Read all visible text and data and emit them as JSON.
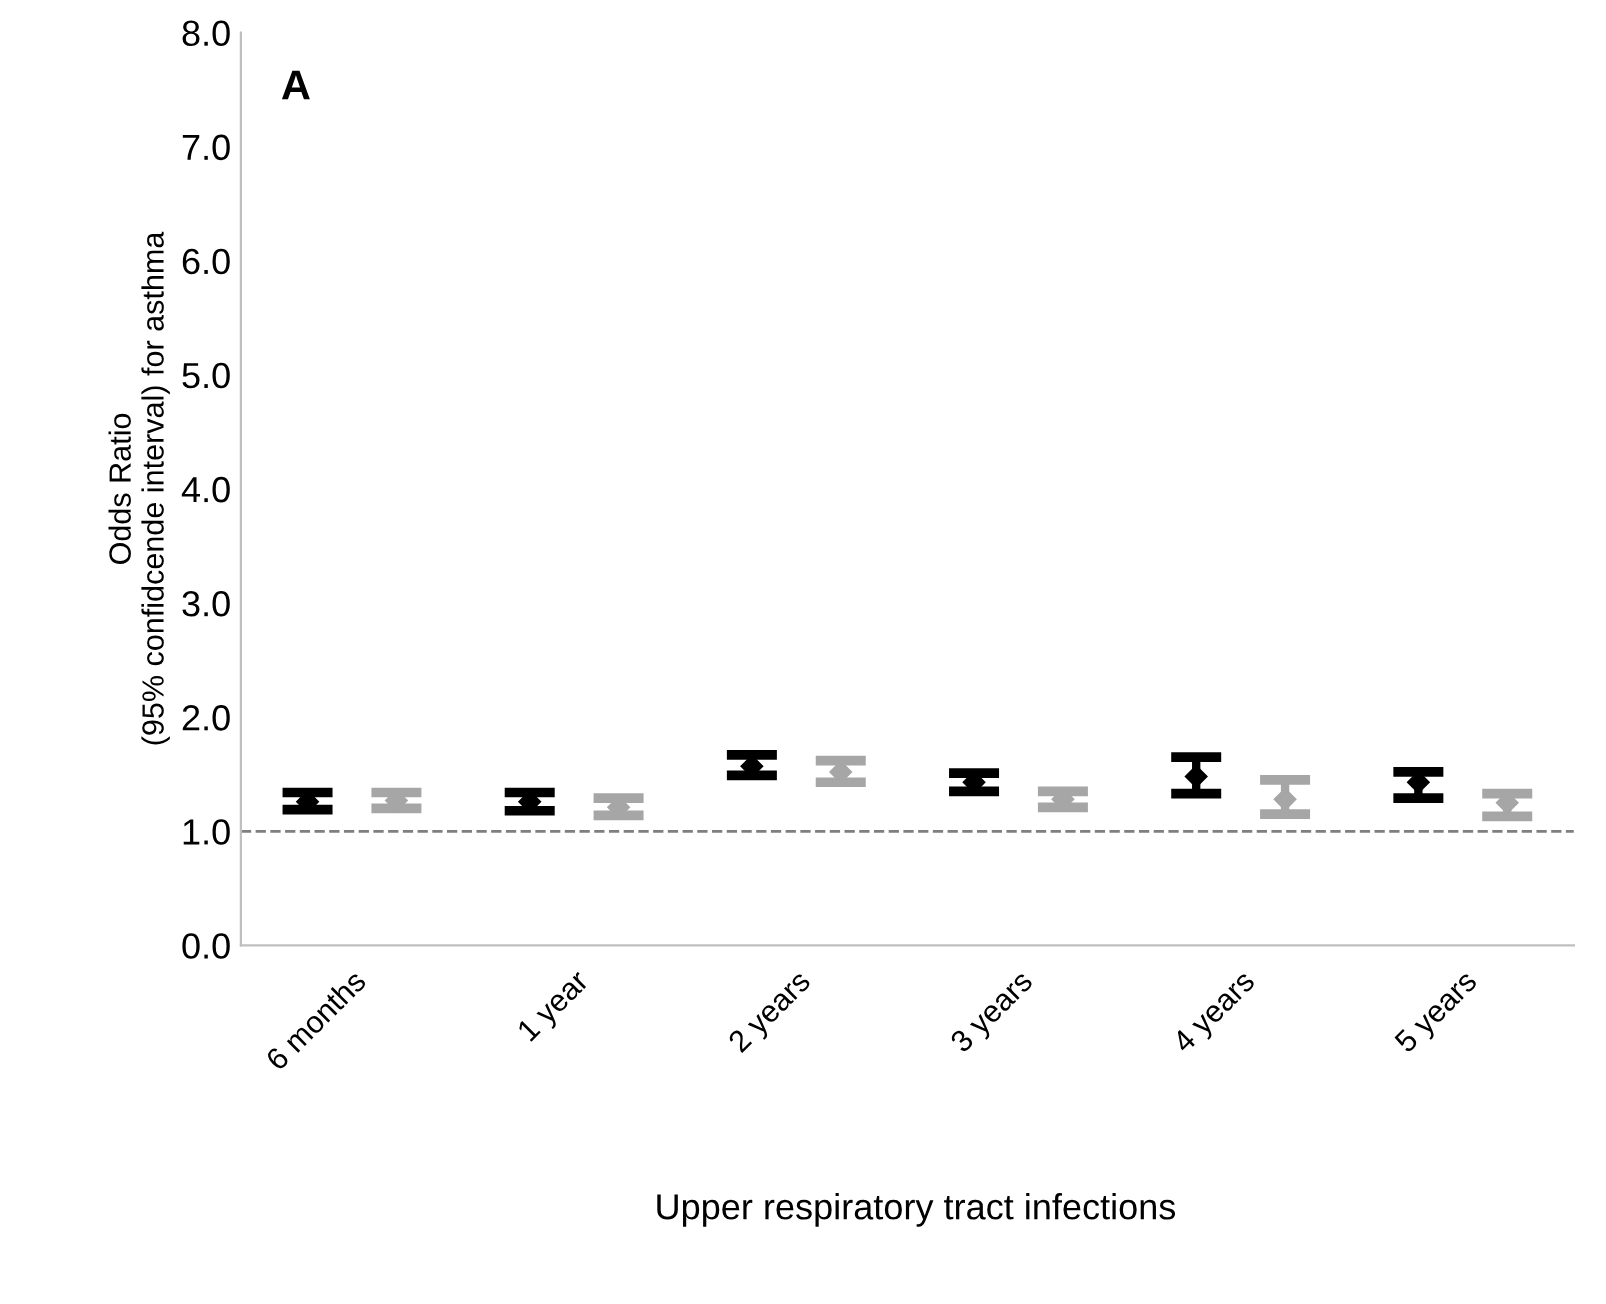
{
  "chart_data": {
    "type": "scatter",
    "xlabel": "Upper respiratory tract infections",
    "ylabel": "Odds Ratio\n(95% confidcende interval) for asthma",
    "annotations": [
      "A"
    ],
    "categories": [
      "6 months",
      "1 year",
      "2 years",
      "3 years",
      "4 years",
      "5 years"
    ],
    "series": [
      {
        "color": "#000000",
        "values": [
          1.26,
          1.26,
          1.57,
          1.43,
          1.48,
          1.43
        ],
        "errors": [
          [
            1.19,
            1.34
          ],
          [
            1.18,
            1.34
          ],
          [
            1.49,
            1.67
          ],
          [
            1.35,
            1.51
          ],
          [
            1.33,
            1.65
          ],
          [
            1.29,
            1.52
          ]
        ]
      },
      {
        "color": "#a6a6a6",
        "values": [
          1.27,
          1.21,
          1.52,
          1.28,
          1.28,
          1.25
        ],
        "errors": [
          [
            1.2,
            1.34
          ],
          [
            1.14,
            1.29
          ],
          [
            1.43,
            1.62
          ],
          [
            1.21,
            1.35
          ],
          [
            1.15,
            1.45
          ],
          [
            1.13,
            1.33
          ]
        ]
      }
    ],
    "marker": "diamond",
    "ylim": [
      0,
      8
    ],
    "yticks": [
      {
        "value": 0,
        "label": "0.0"
      },
      {
        "value": 1,
        "label": "1.0"
      },
      {
        "value": 2,
        "label": "2.0"
      },
      {
        "value": 3,
        "label": "3.0"
      },
      {
        "value": 4,
        "label": "4.0"
      },
      {
        "value": 5,
        "label": "5.0"
      },
      {
        "value": 6,
        "label": "6.0"
      },
      {
        "value": 7,
        "label": "7.0"
      },
      {
        "value": 8,
        "label": "8.0"
      }
    ],
    "ref_lines": [
      {
        "axis": "y",
        "value": 1,
        "color": "#7f7f7f",
        "line_style": "dashed"
      }
    ],
    "grid": false
  }
}
